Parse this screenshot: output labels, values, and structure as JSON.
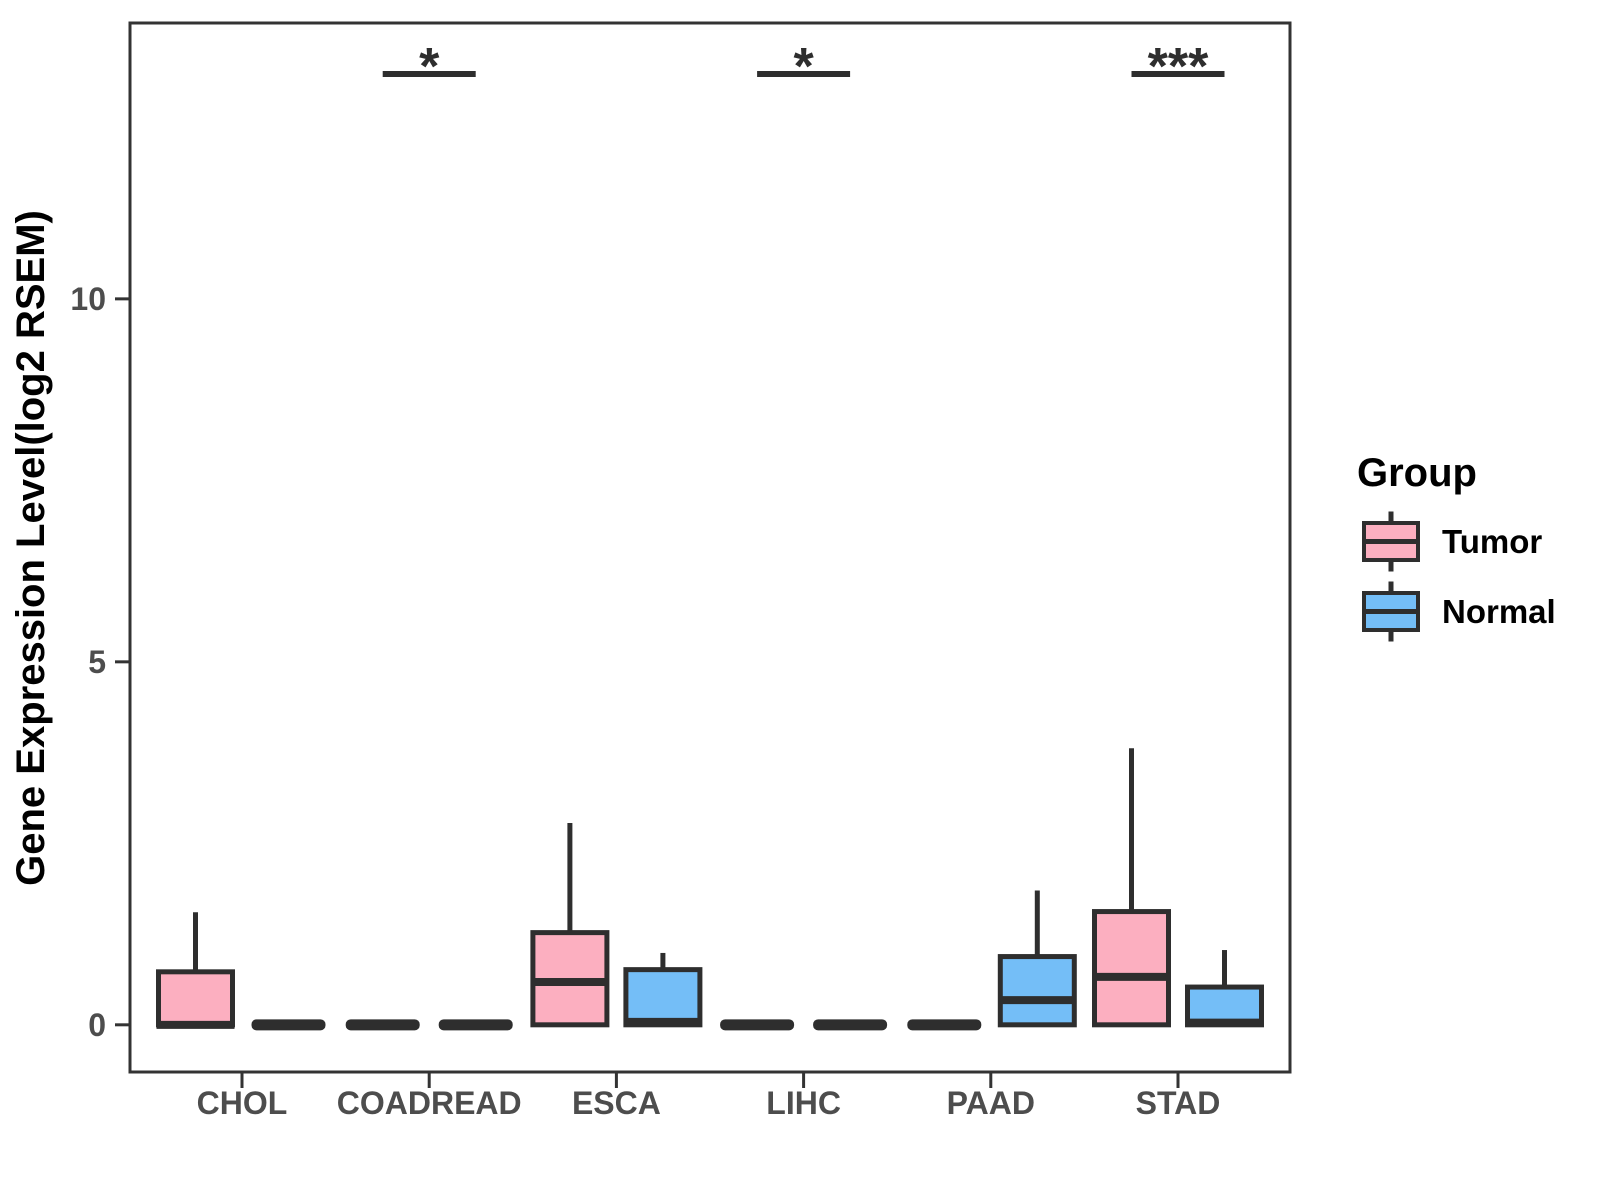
{
  "chart_data": {
    "type": "boxplot",
    "title": "",
    "xlabel": "",
    "ylabel": "Gene Expression Level(log2 RSEM)",
    "ylim": [
      -0.65,
      13.8
    ],
    "yticks": [
      0,
      5,
      10
    ],
    "grid": "off",
    "categories": [
      "CHOL",
      "COADREAD",
      "ESCA",
      "LIHC",
      "PAAD",
      "STAD"
    ],
    "series": [
      {
        "name": "Tumor",
        "color": "#FCAFC0",
        "boxes": [
          {
            "low": 0,
            "q1": 0,
            "median": 0,
            "q3": 0.73,
            "high": 1.55
          },
          {
            "low": 0,
            "q1": 0,
            "median": 0,
            "q3": 0,
            "high": 0
          },
          {
            "low": 0,
            "q1": 0,
            "median": 0.59,
            "q3": 1.27,
            "high": 2.78
          },
          {
            "low": 0,
            "q1": 0,
            "median": 0,
            "q3": 0,
            "high": 0
          },
          {
            "low": 0,
            "q1": 0,
            "median": 0,
            "q3": 0,
            "high": 0
          },
          {
            "low": 0,
            "q1": 0,
            "median": 0.66,
            "q3": 1.56,
            "high": 3.81
          }
        ]
      },
      {
        "name": "Normal",
        "color": "#74BEF7",
        "boxes": [
          {
            "low": 0,
            "q1": 0,
            "median": 0,
            "q3": 0,
            "high": 0
          },
          {
            "low": 0,
            "q1": 0,
            "median": 0,
            "q3": 0,
            "high": 0
          },
          {
            "low": 0,
            "q1": 0,
            "median": 0.04,
            "q3": 0.76,
            "high": 0.99
          },
          {
            "low": 0,
            "q1": 0,
            "median": 0,
            "q3": 0,
            "high": 0
          },
          {
            "low": 0,
            "q1": 0,
            "median": 0.34,
            "q3": 0.94,
            "high": 1.85
          },
          {
            "low": 0,
            "q1": 0,
            "median": 0.03,
            "q3": 0.52,
            "high": 1.03
          }
        ]
      }
    ],
    "significance": [
      {
        "category": "COADREAD",
        "label": "*"
      },
      {
        "category": "LIHC",
        "label": "*"
      },
      {
        "category": "STAD",
        "label": "***"
      }
    ],
    "legend": {
      "title": "Group",
      "position": "right",
      "entries": [
        {
          "label": "Tumor",
          "color": "#FCAFC0"
        },
        {
          "label": "Normal",
          "color": "#74BEF7"
        }
      ]
    },
    "styles": {
      "line_color": "#2e2e2e",
      "panel_border_color": "#333333",
      "tick_label_color": "#4d4d4d",
      "text_color": "#000000",
      "background": "#ffffff"
    }
  }
}
